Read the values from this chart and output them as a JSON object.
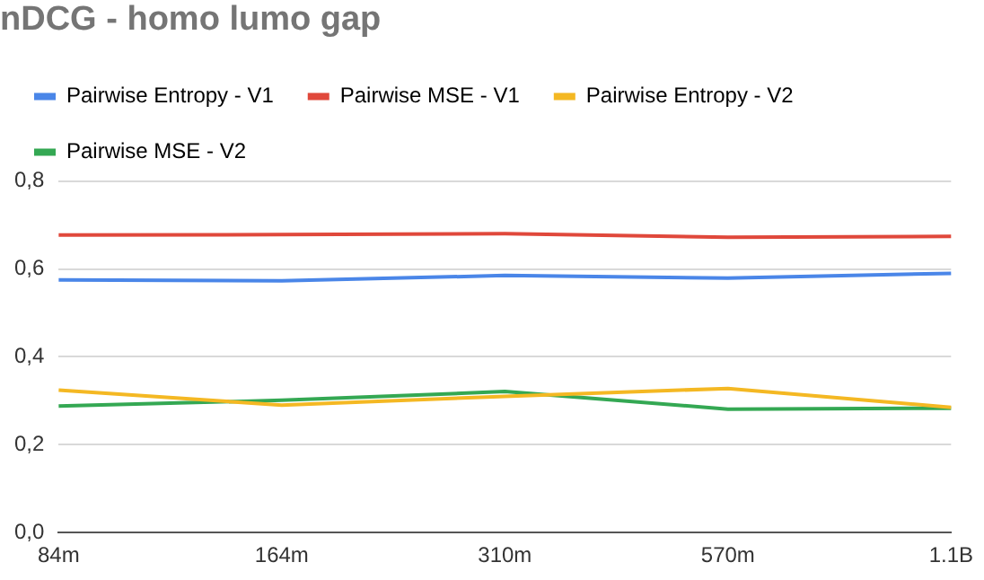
{
  "chart_data": {
    "type": "line",
    "title": "nDCG - homo lumo gap",
    "categories": [
      "84m",
      "164m",
      "310m",
      "570m",
      "1.1B"
    ],
    "series": [
      {
        "name": "Pairwise Entropy - V1",
        "color": "#4a86e8",
        "values": [
          0.575,
          0.573,
          0.585,
          0.579,
          0.59
        ]
      },
      {
        "name": "Pairwise MSE - V1",
        "color": "#e0483b",
        "values": [
          0.677,
          0.678,
          0.68,
          0.672,
          0.674
        ]
      },
      {
        "name": "Pairwise Entropy - V2",
        "color": "#f4b823",
        "values": [
          0.324,
          0.29,
          0.31,
          0.328,
          0.285
        ]
      },
      {
        "name": "Pairwise MSE - V2",
        "color": "#34a853",
        "values": [
          0.288,
          0.301,
          0.321,
          0.281,
          0.283
        ]
      }
    ],
    "ylim": [
      0,
      0.8
    ],
    "yticks": [
      {
        "value": 0,
        "label": "0,0"
      },
      {
        "value": 0.2,
        "label": "0,2"
      },
      {
        "value": 0.4,
        "label": "0,4"
      },
      {
        "value": 0.6,
        "label": "0,6"
      },
      {
        "value": 0.8,
        "label": "0,8"
      }
    ],
    "grid": "y",
    "legend": "top",
    "marker": "none",
    "line_style": "solid"
  }
}
